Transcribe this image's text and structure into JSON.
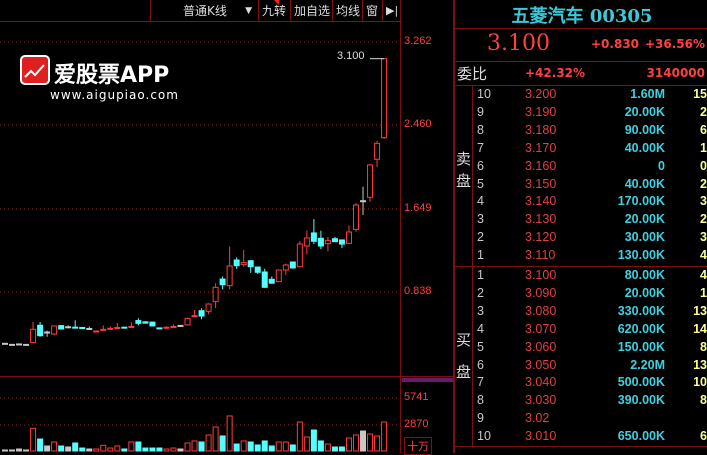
{
  "toolbar": {
    "kline_type": "普通K线",
    "dropdown_icon": "triangle-down",
    "nine_turn": "九转",
    "add_watchlist": "加自选",
    "ma": "均线",
    "window": "窗",
    "collapse_icon": "arrow-right-bar"
  },
  "axis": {
    "price_ticks": [
      "3.262",
      "2.460",
      "1.649",
      "0.838"
    ],
    "volume_ticks": [
      "5741",
      "2870"
    ],
    "volume_unit": "十万"
  },
  "chart_data": {
    "type": "candlestick",
    "last_price_label": "3.100",
    "ylim": [
      0.3,
      3.3
    ],
    "colors": {
      "up": "#ff3c3c",
      "down": "#54ffff",
      "flat": "#c8c8c8"
    },
    "candles": [
      [
        0.336,
        0.34,
        0.33,
        0.336
      ],
      [
        0.326,
        0.326,
        0.326,
        0.326
      ],
      [
        0.33,
        0.335,
        0.325,
        0.33
      ],
      [
        0.326,
        0.326,
        0.326,
        0.326
      ],
      [
        0.343,
        0.543,
        0.34,
        0.473
      ],
      [
        0.511,
        0.543,
        0.4,
        0.41
      ],
      [
        0.446,
        0.46,
        0.4,
        0.446
      ],
      [
        0.427,
        0.51,
        0.415,
        0.505
      ],
      [
        0.508,
        0.512,
        0.47,
        0.475
      ],
      [
        0.497,
        0.51,
        0.48,
        0.497
      ],
      [
        0.493,
        0.56,
        0.485,
        0.488
      ],
      [
        0.49,
        0.495,
        0.478,
        0.48
      ],
      [
        0.48,
        0.5,
        0.48,
        0.48
      ],
      [
        0.452,
        0.462,
        0.445,
        0.456
      ],
      [
        0.468,
        0.51,
        0.465,
        0.472
      ],
      [
        0.478,
        0.5,
        0.475,
        0.482
      ],
      [
        0.485,
        0.532,
        0.483,
        0.49
      ],
      [
        0.493,
        0.495,
        0.482,
        0.488
      ],
      [
        0.495,
        0.54,
        0.49,
        0.5
      ],
      [
        0.557,
        0.58,
        0.51,
        0.53
      ],
      [
        0.545,
        0.55,
        0.53,
        0.532
      ],
      [
        0.542,
        0.545,
        0.5,
        0.505
      ],
      [
        0.486,
        0.488,
        0.475,
        0.476
      ],
      [
        0.488,
        0.5,
        0.486,
        0.492
      ],
      [
        0.497,
        0.52,
        0.495,
        0.5
      ],
      [
        0.51,
        0.512,
        0.505,
        0.51
      ],
      [
        0.515,
        0.585,
        0.513,
        0.579
      ],
      [
        0.595,
        0.66,
        0.593,
        0.605
      ],
      [
        0.653,
        0.675,
        0.57,
        0.601
      ],
      [
        0.647,
        0.725,
        0.62,
        0.718
      ],
      [
        0.741,
        0.92,
        0.68,
        0.88
      ],
      [
        0.96,
        0.985,
        0.86,
        0.905
      ],
      [
        0.896,
        1.275,
        0.86,
        1.087
      ],
      [
        1.145,
        1.17,
        1.06,
        1.09
      ],
      [
        1.1,
        1.243,
        1.08,
        1.12
      ],
      [
        1.138,
        1.145,
        1.02,
        1.08
      ],
      [
        1.077,
        1.08,
        1.01,
        1.026
      ],
      [
        1.029,
        1.06,
        0.875,
        0.88
      ],
      [
        0.958,
        0.985,
        0.915,
        0.92
      ],
      [
        0.935,
        1.05,
        0.93,
        1.048
      ],
      [
        1.048,
        1.11,
        1.0,
        1.097
      ],
      [
        1.126,
        1.13,
        1.06,
        1.068
      ],
      [
        1.08,
        1.33,
        1.075,
        1.301
      ],
      [
        1.281,
        1.43,
        1.2,
        1.359
      ],
      [
        1.408,
        1.543,
        1.3,
        1.327
      ],
      [
        1.356,
        1.43,
        1.25,
        1.281
      ],
      [
        1.304,
        1.37,
        1.23,
        1.333
      ],
      [
        1.352,
        1.37,
        1.32,
        1.323
      ],
      [
        1.34,
        1.345,
        1.26,
        1.3
      ],
      [
        1.307,
        1.48,
        1.3,
        1.417
      ],
      [
        1.443,
        1.7,
        1.42,
        1.679
      ],
      [
        1.721,
        1.857,
        1.582,
        1.721
      ],
      [
        1.754,
        2.08,
        1.71,
        2.068
      ],
      [
        2.123,
        2.3,
        2.05,
        2.278
      ],
      [
        2.333,
        3.1,
        2.32,
        3.1
      ]
    ],
    "volume": [
      108,
      108,
      215,
      108,
      2440,
      1290,
      540,
      970,
      540,
      430,
      860,
      320,
      215,
      215,
      610,
      320,
      540,
      215,
      970,
      970,
      320,
      320,
      320,
      215,
      320,
      215,
      860,
      1080,
      970,
      1720,
      2580,
      1620,
      3770,
      750,
      1080,
      970,
      650,
      1080,
      540,
      970,
      970,
      650,
      3120,
      1510,
      2260,
      1080,
      750,
      430,
      430,
      1400,
      1720,
      2150,
      1830,
      1620,
      3120
    ],
    "volume_ylim": [
      0,
      7000
    ]
  },
  "quote": {
    "name": "五菱汽车",
    "code": "00305",
    "price": "3.100",
    "change": "+0.830",
    "change_pct": "+36.56%",
    "ratio_label": "委比",
    "ratio": "+42.32%",
    "ratio_diff": "3140000"
  },
  "sell_label": [
    "卖",
    "盘"
  ],
  "buy_label": [
    "买",
    "盘"
  ],
  "asks": [
    {
      "lv": "10",
      "price": "3.200",
      "vol": "1.60M",
      "n": "15"
    },
    {
      "lv": "9",
      "price": "3.190",
      "vol": "20.00K",
      "n": "2"
    },
    {
      "lv": "8",
      "price": "3.180",
      "vol": "90.00K",
      "n": "6"
    },
    {
      "lv": "7",
      "price": "3.170",
      "vol": "40.00K",
      "n": "1"
    },
    {
      "lv": "6",
      "price": "3.160",
      "vol": "0",
      "n": "0"
    },
    {
      "lv": "5",
      "price": "3.150",
      "vol": "40.00K",
      "n": "2"
    },
    {
      "lv": "4",
      "price": "3.140",
      "vol": "170.00K",
      "n": "3"
    },
    {
      "lv": "3",
      "price": "3.130",
      "vol": "20.00K",
      "n": "2"
    },
    {
      "lv": "2",
      "price": "3.120",
      "vol": "30.00K",
      "n": "3"
    },
    {
      "lv": "1",
      "price": "3.110",
      "vol": "130.00K",
      "n": "4"
    }
  ],
  "bids": [
    {
      "lv": "1",
      "price": "3.100",
      "vol": "80.00K",
      "n": "4"
    },
    {
      "lv": "2",
      "price": "3.090",
      "vol": "20.00K",
      "n": "1"
    },
    {
      "lv": "3",
      "price": "3.080",
      "vol": "330.00K",
      "n": "13"
    },
    {
      "lv": "4",
      "price": "3.070",
      "vol": "620.00K",
      "n": "14"
    },
    {
      "lv": "5",
      "price": "3.060",
      "vol": "150.00K",
      "n": "8"
    },
    {
      "lv": "6",
      "price": "3.050",
      "vol": "2.20M",
      "n": "13"
    },
    {
      "lv": "7",
      "price": "3.040",
      "vol": "500.00K",
      "n": "10"
    },
    {
      "lv": "8",
      "price": "3.030",
      "vol": "390.00K",
      "n": "8"
    },
    {
      "lv": "9",
      "price": "3.02",
      "vol": "",
      "n": ""
    },
    {
      "lv": "10",
      "price": "3.010",
      "vol": "650.00K",
      "n": "6"
    }
  ],
  "watermark": {
    "brand": "爱股票APP",
    "url": "www.aigupiao.com"
  }
}
